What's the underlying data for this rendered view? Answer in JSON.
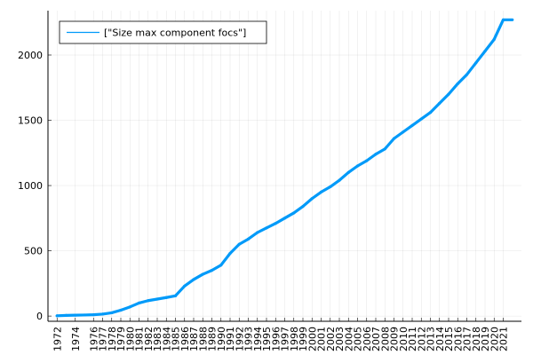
{
  "chart_data": {
    "type": "line",
    "title": "",
    "xlabel": "",
    "ylabel": "",
    "legend": {
      "placement": "top-left",
      "entries": [
        "[\"Size max component focs\"]"
      ]
    },
    "grid": true,
    "ylim": [
      -40,
      2340
    ],
    "y_ticks": [
      0,
      500,
      1000,
      1500,
      2000
    ],
    "series_color": "#009af9",
    "x": [
      1972,
      1973,
      1974,
      1975,
      1976,
      1977,
      1978,
      1979,
      1980,
      1981,
      1982,
      1983,
      1984,
      1985,
      1986,
      1987,
      1988,
      1989,
      1990,
      1991,
      1992,
      1993,
      1994,
      1995,
      1996,
      1997,
      1998,
      1999,
      2000,
      2001,
      2002,
      2003,
      2004,
      2005,
      2006,
      2007,
      2008,
      2009,
      2010,
      2011,
      2012,
      2013,
      2014,
      2015,
      2016,
      2017,
      2018,
      2019,
      2020,
      2021
    ],
    "x_tick_labels": [
      "1972",
      "1974",
      "1976",
      "1977",
      "1978",
      "1979",
      "1980",
      "1981",
      "1982",
      "1983",
      "1984",
      "1985",
      "1986",
      "1987",
      "1988",
      "1989",
      "1990",
      "1991",
      "1992",
      "1993",
      "1994",
      "1995",
      "1996",
      "1997",
      "1998",
      "1999",
      "2000",
      "2001",
      "2002",
      "2003",
      "2004",
      "2005",
      "2006",
      "2007",
      "2008",
      "2009",
      "2010",
      "2011",
      "2012",
      "2013",
      "2014",
      "2015",
      "2016",
      "2017",
      "2018",
      "2019",
      "2020",
      "2021"
    ],
    "series": [
      {
        "name": "[\"Size max component focs\"]",
        "values": [
          2,
          5,
          7,
          8,
          10,
          15,
          25,
          45,
          70,
          100,
          118,
          130,
          142,
          155,
          230,
          280,
          320,
          350,
          390,
          480,
          550,
          590,
          640,
          675,
          710,
          750,
          790,
          840,
          900,
          950,
          990,
          1040,
          1100,
          1150,
          1190,
          1240,
          1280,
          1360,
          1410,
          1460,
          1510,
          1560,
          1630,
          1700,
          1780,
          1850,
          1940,
          2030,
          2120,
          2270
        ]
      }
    ]
  }
}
